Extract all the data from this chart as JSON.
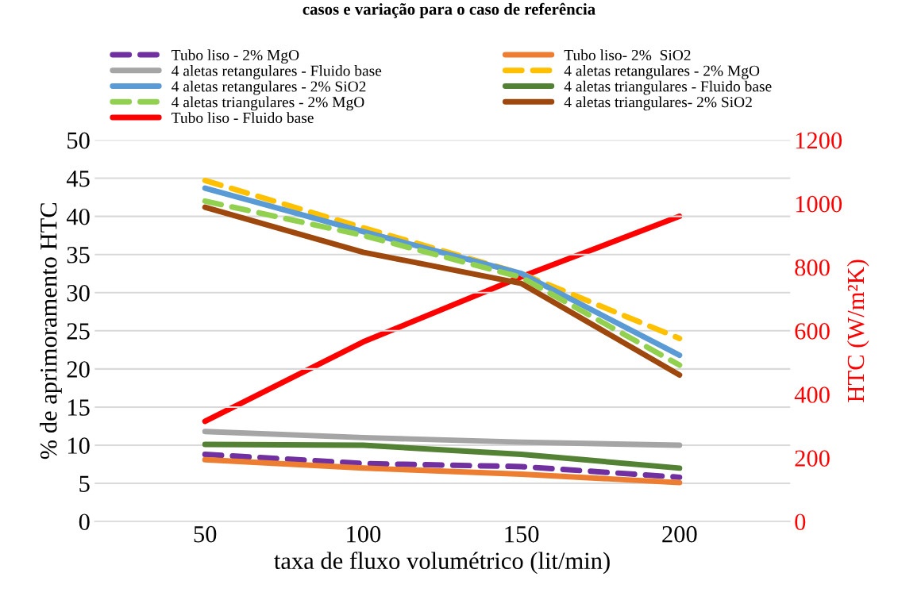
{
  "chart_data": {
    "type": "line",
    "title": "casos e variação para o caso de referência",
    "xlabel": "taxa de fluxo volumétrico (lit/min)",
    "ylabel": "% de aprimoramento HTC",
    "y2label": "HTC (W/m²K)",
    "categories": [
      "50",
      "100",
      "150",
      "200"
    ],
    "series": [
      {
        "name": "Tubo liso - 2% MgO",
        "color": "#7030a0",
        "line_style": "dashed",
        "values": [
          8.8,
          7.6,
          7.2,
          5.8
        ]
      },
      {
        "name": "Tubo liso- 2%  SiO2",
        "color": "#ed7d31",
        "line_style": "solid",
        "values": [
          8.1,
          7.0,
          6.2,
          5.1
        ]
      },
      {
        "name": "4 aletas retangulares - Fluido base",
        "color": "#a5a5a5",
        "line_style": "solid",
        "values": [
          11.8,
          11.0,
          10.4,
          10.0
        ]
      },
      {
        "name": "4 aletas retangulares - 2% MgO",
        "color": "#ffc000",
        "line_style": "dashed",
        "values": [
          44.7,
          38.5,
          32.5,
          24.0
        ]
      },
      {
        "name": "4 aletas retangulares - 2% SiO2",
        "color": "#5b9bd5",
        "line_style": "solid",
        "values": [
          43.7,
          38.0,
          32.5,
          21.8
        ]
      },
      {
        "name": "4 aletas triangulares - Fluido base",
        "color": "#548235",
        "line_style": "solid",
        "values": [
          10.1,
          10.0,
          8.8,
          7.0
        ]
      },
      {
        "name": "4 aletas triangulares - 2% MgO",
        "color": "#92d050",
        "line_style": "dashed",
        "values": [
          42.0,
          37.5,
          32.0,
          20.5
        ]
      },
      {
        "name": "4 aletas triangulares- 2% SiO2",
        "color": "#9e480e",
        "line_style": "solid",
        "values": [
          41.2,
          35.3,
          31.2,
          19.2
        ]
      },
      {
        "name": "Tubo liso - Fluido base",
        "color": "#ff0000",
        "line_style": "solid",
        "axis": "y2",
        "values": [
          315,
          565,
          770,
          960
        ]
      }
    ],
    "ylim": [
      0,
      50
    ],
    "yticks": [
      0,
      5,
      10,
      15,
      20,
      25,
      30,
      35,
      40,
      45,
      50
    ],
    "y2lim": [
      0,
      1200
    ],
    "y2ticks": [
      0,
      200,
      400,
      600,
      800,
      1000,
      1200
    ],
    "grid": "y",
    "legend": "top",
    "marker": "none"
  }
}
